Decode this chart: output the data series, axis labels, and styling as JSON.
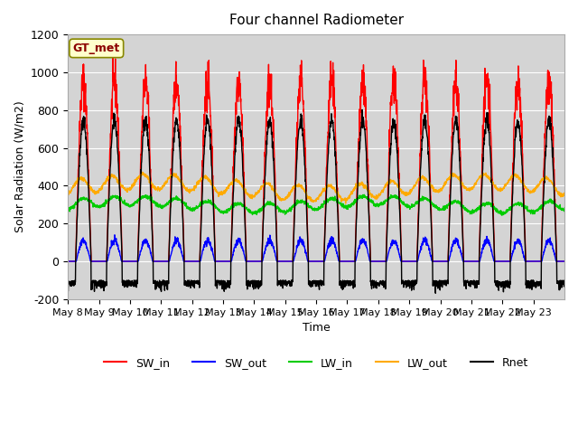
{
  "title": "Four channel Radiometer",
  "ylabel": "Solar Radiation (W/m2)",
  "xlabel": "Time",
  "annotation": "GT_met",
  "x_tick_labels": [
    "May 8",
    "May 9",
    "May 10",
    "May 11",
    "May 12",
    "May 13",
    "May 14",
    "May 15",
    "May 16",
    "May 17",
    "May 18",
    "May 19",
    "May 20",
    "May 21",
    "May 22",
    "May 23"
  ],
  "ylim": [
    -200,
    1200
  ],
  "yticks": [
    -200,
    0,
    200,
    400,
    600,
    800,
    1000,
    1200
  ],
  "n_days": 16,
  "colors": {
    "SW_in": "#ff0000",
    "SW_out": "#0000ff",
    "LW_in": "#00cc00",
    "LW_out": "#ffaa00",
    "Rnet": "#000000"
  },
  "legend_labels": [
    "SW_in",
    "SW_out",
    "LW_in",
    "LW_out",
    "Rnet"
  ],
  "axes_facecolor": "#d4d4d4",
  "fig_facecolor": "#ffffff",
  "grid_color": "#ffffff",
  "annotation_facecolor": "#ffffcc",
  "annotation_edgecolor": "#888800",
  "annotation_textcolor": "#8B0000"
}
